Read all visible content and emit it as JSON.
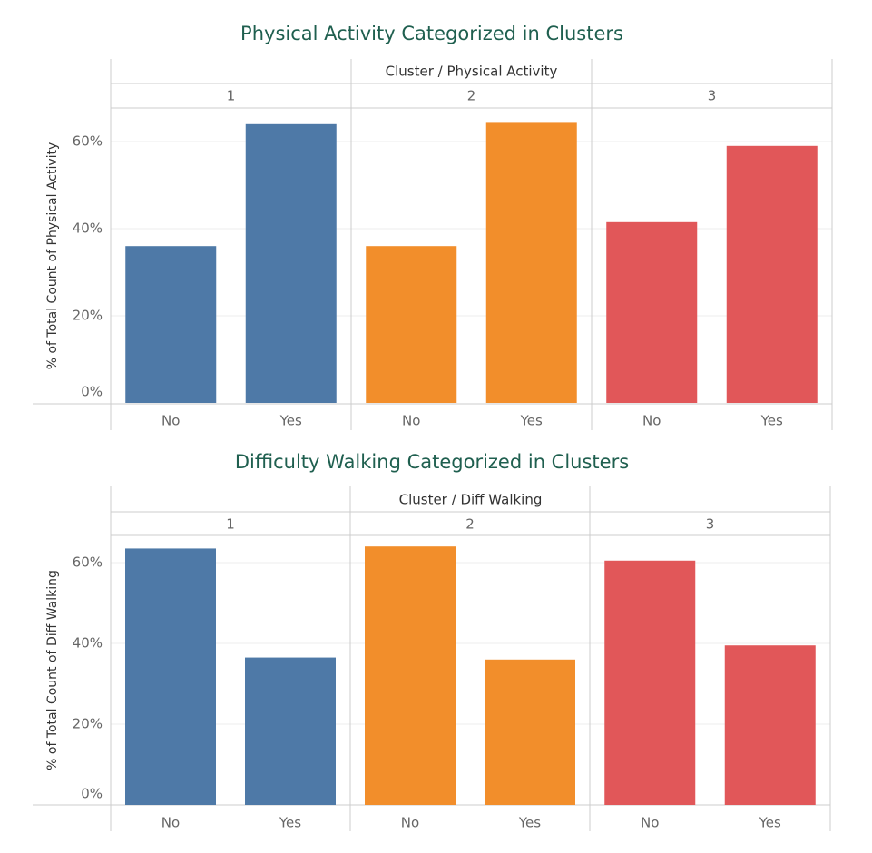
{
  "colors": {
    "title": "#1f5f4f",
    "cluster_1": "#4e79a7",
    "cluster_2": "#f28e2b",
    "cluster_3": "#e15759",
    "axis_text": "#666666",
    "header_text": "#333333",
    "border": "#cccccc",
    "gridline": "#eeeeee"
  },
  "chart_data": [
    {
      "type": "bar",
      "title": "Physical Activity Categorized in Clusters",
      "header": "Cluster / Physical Activity",
      "ylabel": "% of Total Count of Physical Activity",
      "ylim": [
        0,
        0.67
      ],
      "yticks": [
        {
          "value": 0,
          "label": "0%"
        },
        {
          "value": 0.2,
          "label": "20%"
        },
        {
          "value": 0.4,
          "label": "40%"
        },
        {
          "value": 0.6,
          "label": "60%"
        }
      ],
      "categories": [
        "No",
        "Yes"
      ],
      "panels": [
        {
          "cluster": "1",
          "values": [
            0.36,
            0.64
          ]
        },
        {
          "cluster": "2",
          "values": [
            0.36,
            0.645
          ]
        },
        {
          "cluster": "3",
          "values": [
            0.415,
            0.59
          ]
        }
      ],
      "grid": true
    },
    {
      "type": "bar",
      "title": "Difficulty Walking Categorized in Clusters",
      "header": "Cluster / Diff Walking",
      "ylabel": "% of Total Count of Diff Walking",
      "ylim": [
        0,
        0.665
      ],
      "yticks": [
        {
          "value": 0,
          "label": "0%"
        },
        {
          "value": 0.2,
          "label": "20%"
        },
        {
          "value": 0.4,
          "label": "40%"
        },
        {
          "value": 0.6,
          "label": "60%"
        }
      ],
      "categories": [
        "No",
        "Yes"
      ],
      "panels": [
        {
          "cluster": "1",
          "values": [
            0.635,
            0.365
          ]
        },
        {
          "cluster": "2",
          "values": [
            0.64,
            0.36
          ]
        },
        {
          "cluster": "3",
          "values": [
            0.605,
            0.395
          ]
        }
      ],
      "grid": true
    }
  ]
}
